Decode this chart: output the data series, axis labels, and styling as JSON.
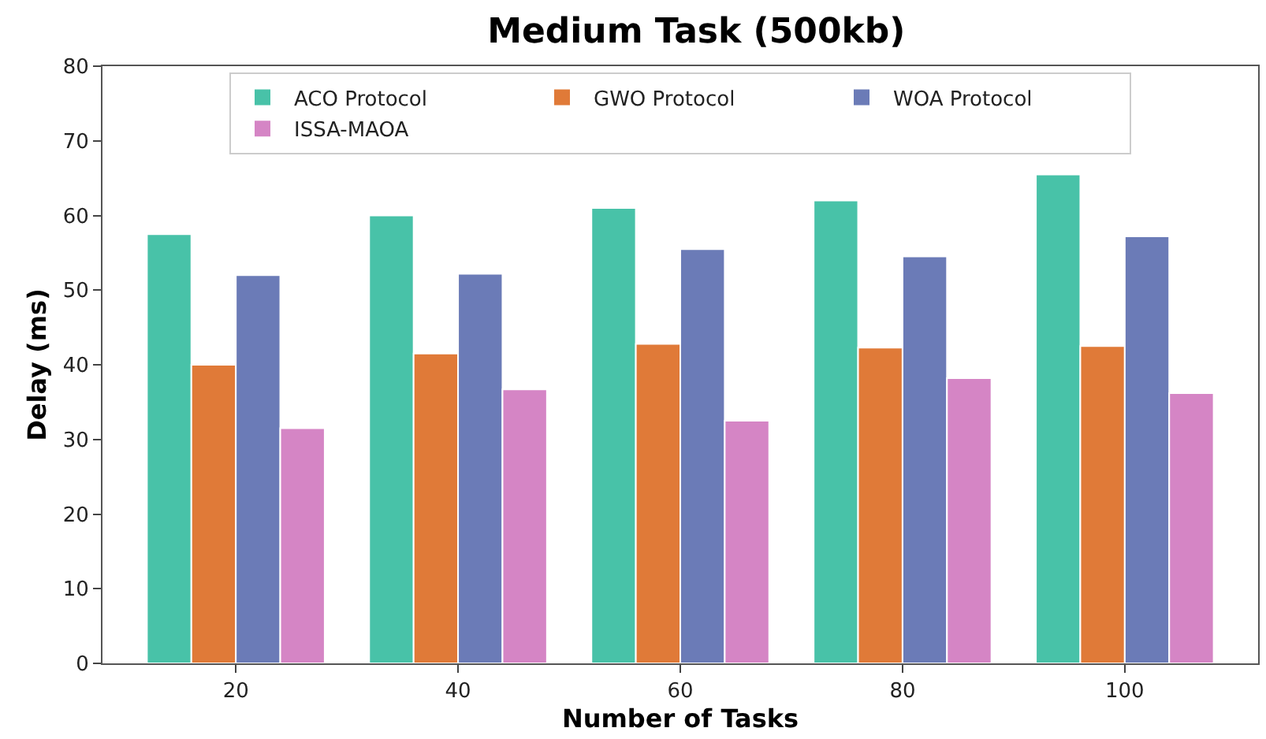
{
  "chart_data": {
    "type": "bar",
    "title": "Medium Task (500kb)",
    "xlabel": "Number of Tasks",
    "ylabel": "Delay (ms)",
    "categories": [
      "20",
      "40",
      "60",
      "80",
      "100"
    ],
    "series": [
      {
        "name": "ACO Protocol",
        "color": "#48c2a8",
        "values": [
          57.5,
          60,
          61,
          62,
          65.5
        ]
      },
      {
        "name": "GWO Protocol",
        "color": "#e07a38",
        "values": [
          40,
          41.5,
          42.8,
          42.3,
          42.5
        ]
      },
      {
        "name": "WOA Protocol",
        "color": "#6b7bb7",
        "values": [
          52,
          52.2,
          55.5,
          54.5,
          57.2
        ]
      },
      {
        "name": "ISSA-MAOA",
        "color": "#d585c5",
        "values": [
          31.5,
          36.7,
          32.5,
          38.2,
          36.2
        ]
      }
    ],
    "ylim": [
      0,
      80
    ],
    "yticks": [
      0,
      10,
      20,
      30,
      40,
      50,
      60,
      70,
      80
    ],
    "legend": "top"
  }
}
